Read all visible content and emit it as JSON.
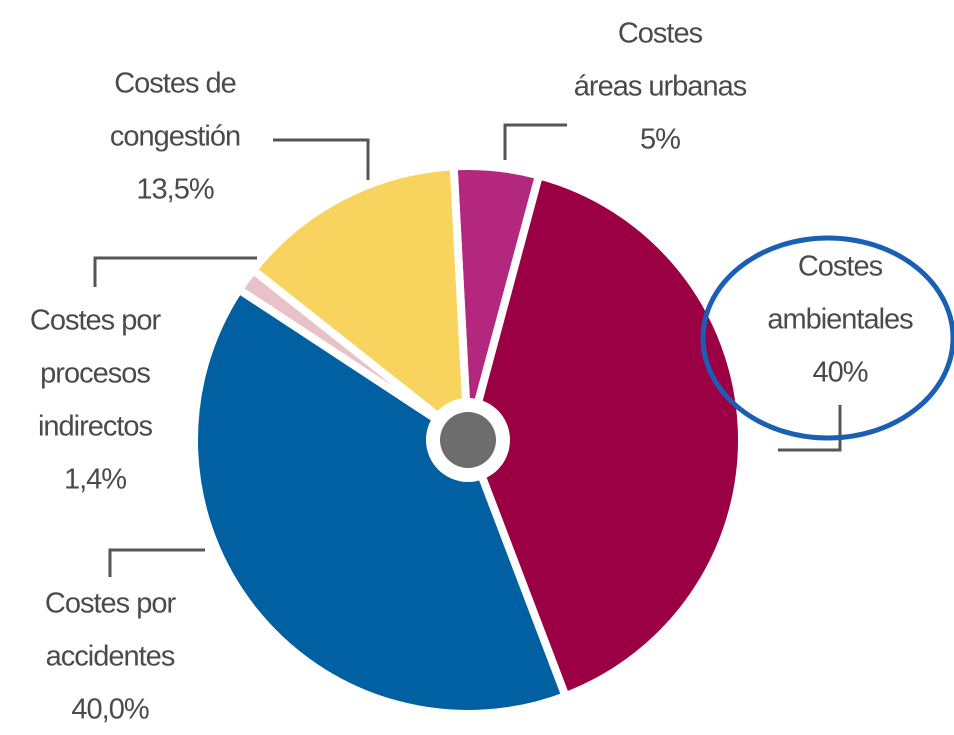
{
  "chart_data": {
    "type": "pie",
    "categories": [
      [
        "Costes",
        "áreas urbanas"
      ],
      [
        "Costes",
        "ambientales"
      ],
      [
        "Costes por",
        "accidentes"
      ],
      [
        "Costes por",
        "procesos",
        "indirectos"
      ],
      [
        "Costes de",
        "congestión"
      ]
    ],
    "values": [
      5,
      40,
      40.0,
      1.4,
      13.5
    ],
    "value_labels": [
      "5%",
      "40%",
      "40,0%",
      "1,4%",
      "13,5%"
    ],
    "colors": [
      "#b3287e",
      "#9b0045",
      "#0060a2",
      "#e9c2c9",
      "#f8d45e"
    ]
  }
}
